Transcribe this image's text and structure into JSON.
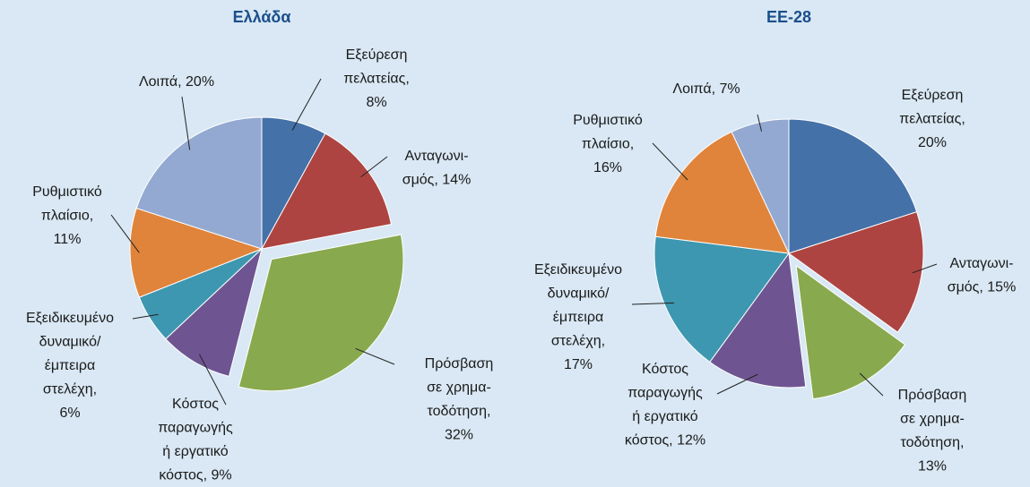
{
  "chart_data": [
    {
      "type": "pie",
      "title": "Ελλάδα",
      "values": [
        8,
        14,
        32,
        9,
        6,
        11,
        20
      ],
      "value_labels": [
        [
          "Εξεύρεση",
          "πελατείας,",
          "8%"
        ],
        [
          "Ανταγωνι-",
          "σμός, 14%"
        ],
        [
          "Πρόσβαση",
          "σε χρημα-",
          "τοδότηση,",
          "32%"
        ],
        [
          "Κόστος",
          "παραγωγής",
          "ή εργατικό",
          "κόστος, 9%"
        ],
        [
          "Εξειδικευμένο",
          "δυναμικό/",
          "έμπειρα",
          "στελέχη,",
          "6%"
        ],
        [
          "Ρυθμιστικό",
          "πλαίσιο,",
          "11%"
        ],
        [
          "Λοιπά, 20%"
        ]
      ],
      "colors": [
        "#4471a8",
        "#ad4441",
        "#89a94f",
        "#6e5592",
        "#3e97b0",
        "#e0843b",
        "#93a9d1"
      ],
      "explode": [
        false,
        false,
        true,
        false,
        false,
        false,
        false
      ]
    },
    {
      "type": "pie",
      "title": "ΕΕ-28",
      "values": [
        20,
        15,
        13,
        12,
        17,
        16,
        7
      ],
      "value_labels": [
        [
          "Εξεύρεση",
          "πελατείας,",
          "20%"
        ],
        [
          "Ανταγωνι-",
          "σμός, 15%"
        ],
        [
          "Πρόσβαση",
          "σε χρημα-",
          "τοδότηση,",
          "13%"
        ],
        [
          "Κόστος",
          "παραγωγής",
          "ή εργατικό",
          "κόστος, 12%"
        ],
        [
          "Εξειδικευμένο",
          "δυναμικό/",
          "έμπειρα",
          "στελέχη,",
          "17%"
        ],
        [
          "Ρυθμιστικό",
          "πλαίσιο,",
          "16%"
        ],
        [
          "Λοιπά, 7%"
        ]
      ],
      "colors": [
        "#4471a8",
        "#ad4441",
        "#89a94f",
        "#6e5592",
        "#3e97b0",
        "#e0843b",
        "#93a9d1"
      ],
      "explode": [
        false,
        false,
        true,
        false,
        false,
        false,
        false
      ]
    }
  ]
}
